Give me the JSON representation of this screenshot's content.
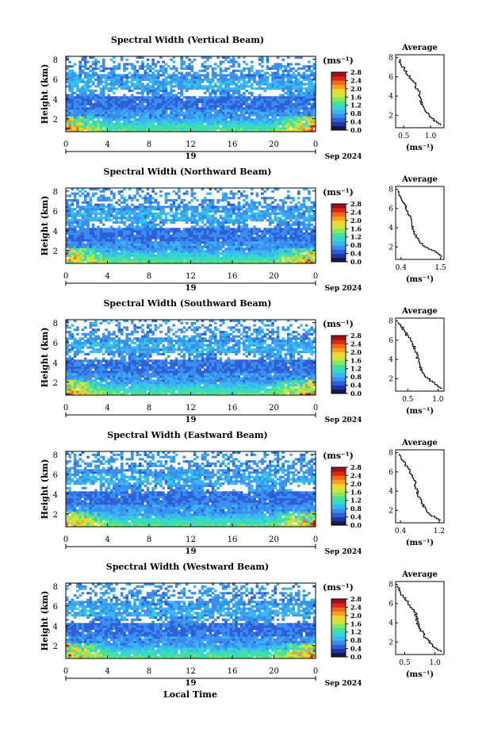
{
  "figure": {
    "x_axis_label": "Local Time",
    "date_label": "Sep 2024",
    "day_label": "19",
    "y_axis_label": "Height (km)",
    "colorbar_unit": "(ms⁻¹)",
    "average_title": "Average",
    "average_xlabel": "(ms⁻¹)",
    "colormap": [
      "#1a1a40",
      "#2233a8",
      "#2c5fd8",
      "#3a8ef0",
      "#39b7f2",
      "#36d6d0",
      "#45e19a",
      "#8ce760",
      "#c9e83c",
      "#f3d530",
      "#f6a020",
      "#ef6a16",
      "#e0241a",
      "#a0101a"
    ]
  },
  "chart_data": [
    {
      "type": "heatmap",
      "title": "Spectral Width (Vertical Beam)",
      "x_ticks": [
        "0",
        "4",
        "8",
        "12",
        "16",
        "20",
        "0"
      ],
      "xlim": [
        0,
        24
      ],
      "y_ticks": [
        "2",
        "4",
        "6",
        "8"
      ],
      "ylim": [
        0.7,
        8.3
      ],
      "colorbar_ticks": [
        "0.0",
        "0.4",
        "0.8",
        "1.2",
        "1.6",
        "2.0",
        "2.4",
        "2.8"
      ],
      "colorbar_range": [
        0,
        2.8
      ],
      "average_profile": {
        "x_ticks": [
          "0.5",
          "1.0"
        ],
        "xlim": [
          0.35,
          1.25
        ],
        "y_ticks": [
          "2",
          "4",
          "6",
          "8"
        ],
        "height": [
          1.0,
          1.5,
          2.0,
          2.5,
          3.0,
          3.5,
          4.0,
          4.5,
          5.0,
          5.5,
          6.0,
          6.5,
          7.0,
          7.5,
          8.0
        ],
        "width": [
          1.2,
          1.08,
          0.98,
          0.9,
          0.85,
          0.82,
          0.8,
          0.78,
          0.72,
          0.7,
          0.62,
          0.55,
          0.5,
          0.45,
          0.4
        ]
      }
    },
    {
      "type": "heatmap",
      "title": "Spectral Width (Northward Beam)",
      "x_ticks": [
        "0",
        "4",
        "8",
        "12",
        "16",
        "20",
        "0"
      ],
      "xlim": [
        0,
        24
      ],
      "y_ticks": [
        "2",
        "4",
        "6",
        "8"
      ],
      "ylim": [
        0.7,
        8.3
      ],
      "colorbar_ticks": [
        "0.0",
        "0.4",
        "0.8",
        "1.2",
        "1.6",
        "2.0",
        "2.4",
        "2.8"
      ],
      "colorbar_range": [
        0,
        2.8
      ],
      "average_profile": {
        "x_ticks": [
          "0.4",
          "1.5"
        ],
        "xlim": [
          0.25,
          1.6
        ],
        "y_ticks": [
          "2",
          "4",
          "6",
          "8"
        ],
        "height": [
          1.0,
          1.5,
          2.0,
          2.5,
          3.0,
          3.5,
          4.0,
          4.5,
          5.0,
          5.5,
          6.0,
          6.5,
          7.0,
          7.5,
          8.0
        ],
        "width": [
          1.55,
          1.4,
          1.1,
          0.95,
          0.85,
          0.78,
          0.72,
          0.7,
          0.68,
          0.6,
          0.55,
          0.5,
          0.42,
          0.35,
          0.3
        ]
      }
    },
    {
      "type": "heatmap",
      "title": "Spectral Width (Southward Beam)",
      "x_ticks": [
        "0",
        "4",
        "8",
        "12",
        "16",
        "20",
        "0"
      ],
      "xlim": [
        0,
        24
      ],
      "y_ticks": [
        "2",
        "4",
        "6",
        "8"
      ],
      "ylim": [
        0.7,
        8.3
      ],
      "colorbar_ticks": [
        "0.0",
        "0.4",
        "0.8",
        "1.2",
        "1.6",
        "2.0",
        "2.4",
        "2.8"
      ],
      "colorbar_range": [
        0,
        2.8
      ],
      "average_profile": {
        "x_ticks": [
          "0.5",
          "1.0"
        ],
        "xlim": [
          0.3,
          1.1
        ],
        "y_ticks": [
          "2",
          "4",
          "6",
          "8"
        ],
        "height": [
          1.0,
          1.5,
          2.0,
          2.5,
          3.0,
          3.5,
          4.0,
          4.5,
          5.0,
          5.5,
          6.0,
          6.5,
          7.0,
          7.5,
          8.0
        ],
        "width": [
          1.05,
          0.95,
          0.85,
          0.78,
          0.72,
          0.7,
          0.68,
          0.65,
          0.62,
          0.6,
          0.55,
          0.5,
          0.45,
          0.4,
          0.35
        ]
      }
    },
    {
      "type": "heatmap",
      "title": "Spectral Width (Eastward Beam)",
      "x_ticks": [
        "0",
        "4",
        "8",
        "12",
        "16",
        "20",
        "0"
      ],
      "xlim": [
        0,
        24
      ],
      "y_ticks": [
        "2",
        "4",
        "6",
        "8"
      ],
      "ylim": [
        0.7,
        8.3
      ],
      "colorbar_ticks": [
        "0.0",
        "0.4",
        "0.8",
        "1.2",
        "1.6",
        "2.0",
        "2.4",
        "2.8"
      ],
      "colorbar_range": [
        0,
        2.8
      ],
      "average_profile": {
        "x_ticks": [
          "0.4",
          "1.2"
        ],
        "xlim": [
          0.3,
          1.3
        ],
        "y_ticks": [
          "2",
          "4",
          "6",
          "8"
        ],
        "height": [
          1.0,
          1.5,
          2.0,
          2.5,
          3.0,
          3.5,
          4.0,
          4.5,
          5.0,
          5.5,
          6.0,
          6.5,
          7.0,
          7.5,
          8.0
        ],
        "width": [
          1.25,
          1.05,
          0.95,
          0.88,
          0.82,
          0.78,
          0.75,
          0.72,
          0.7,
          0.65,
          0.6,
          0.55,
          0.48,
          0.42,
          0.35
        ]
      }
    },
    {
      "type": "heatmap",
      "title": "Spectral Width (Westward Beam)",
      "x_ticks": [
        "0",
        "4",
        "8",
        "12",
        "16",
        "20",
        "0"
      ],
      "xlim": [
        0,
        24
      ],
      "y_ticks": [
        "2",
        "4",
        "6",
        "8"
      ],
      "ylim": [
        0.7,
        8.3
      ],
      "colorbar_ticks": [
        "0.0",
        "0.4",
        "0.8",
        "1.2",
        "1.6",
        "2.0",
        "2.4",
        "2.8"
      ],
      "colorbar_range": [
        0,
        2.8
      ],
      "average_profile": {
        "x_ticks": [
          "0.5",
          "1.0"
        ],
        "xlim": [
          0.35,
          1.15
        ],
        "y_ticks": [
          "2",
          "4",
          "6",
          "8"
        ],
        "height": [
          1.0,
          1.5,
          2.0,
          2.5,
          3.0,
          3.5,
          4.0,
          4.5,
          5.0,
          5.5,
          6.0,
          6.5,
          7.0,
          7.5,
          8.0
        ],
        "width": [
          1.1,
          1.0,
          0.92,
          0.85,
          0.8,
          0.75,
          0.72,
          0.7,
          0.68,
          0.62,
          0.58,
          0.52,
          0.45,
          0.4,
          0.38
        ]
      }
    }
  ]
}
